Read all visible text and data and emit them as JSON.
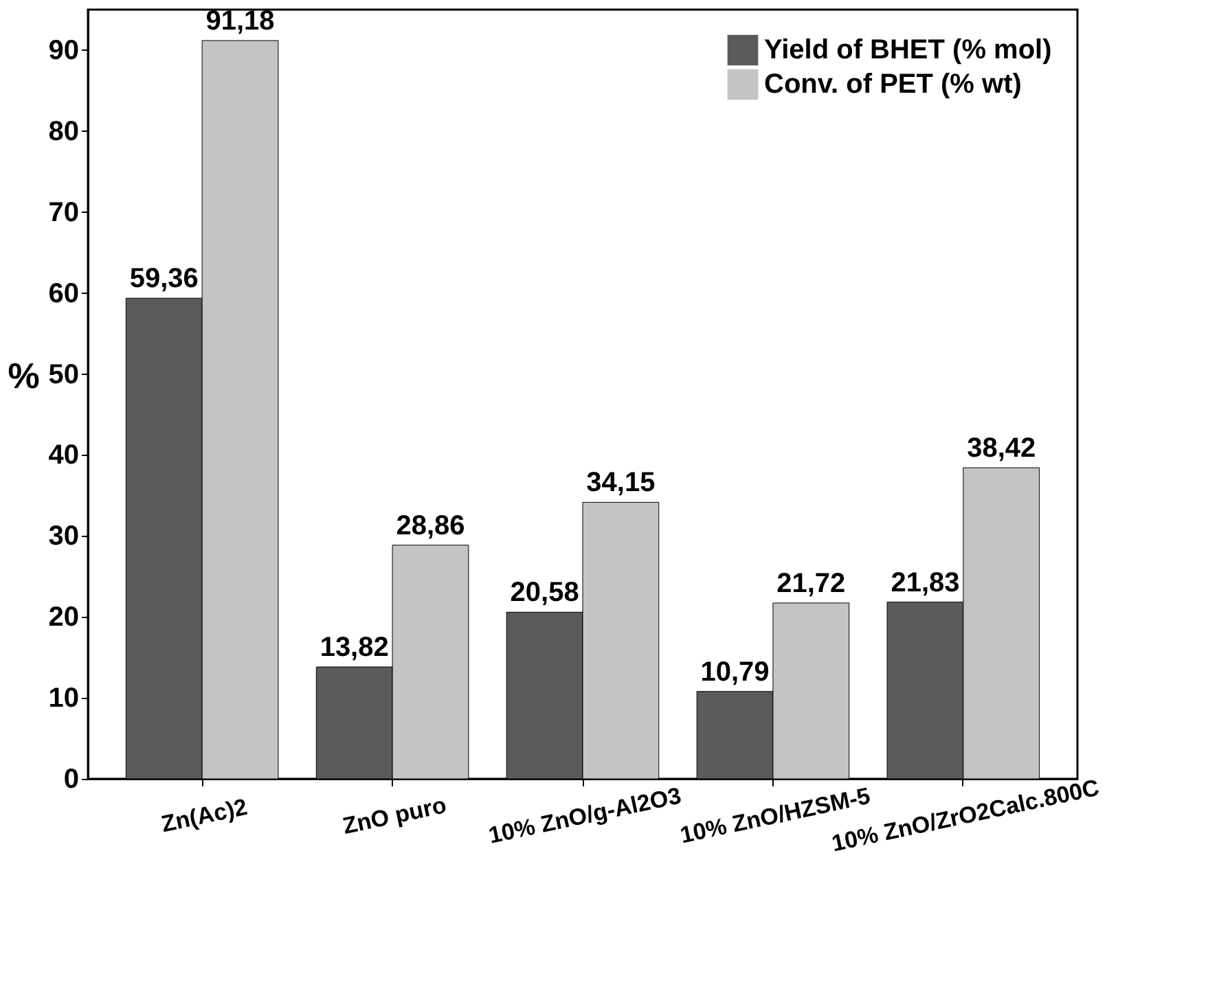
{
  "chart_data": {
    "type": "bar",
    "ylabel": "%",
    "categories": [
      "Zn(Ac)2",
      "ZnO puro",
      "10% ZnO/g-Al2O3",
      "10% ZnO/HZSM-5",
      "10% ZnO/ZrO2Calc.800C"
    ],
    "series": [
      {
        "name": "Yield of BHET (% mol)",
        "color": "#5a5a5a",
        "values": [
          59.36,
          13.82,
          20.58,
          10.79,
          21.83
        ],
        "value_labels": [
          "59,36",
          "13,82",
          "20,58",
          "10,79",
          "21,83"
        ]
      },
      {
        "name": "Conv. of  PET (% wt)",
        "color": "#c4c4c4",
        "values": [
          91.18,
          28.86,
          34.15,
          21.72,
          38.42
        ],
        "value_labels": [
          "91,18",
          "28,86",
          "34,15",
          "21,72",
          "38,42"
        ]
      }
    ],
    "ylim": [
      0,
      95
    ],
    "yticks": [
      0,
      10,
      20,
      30,
      40,
      50,
      60,
      70,
      80,
      90
    ],
    "grid": false,
    "legend": "top right"
  }
}
